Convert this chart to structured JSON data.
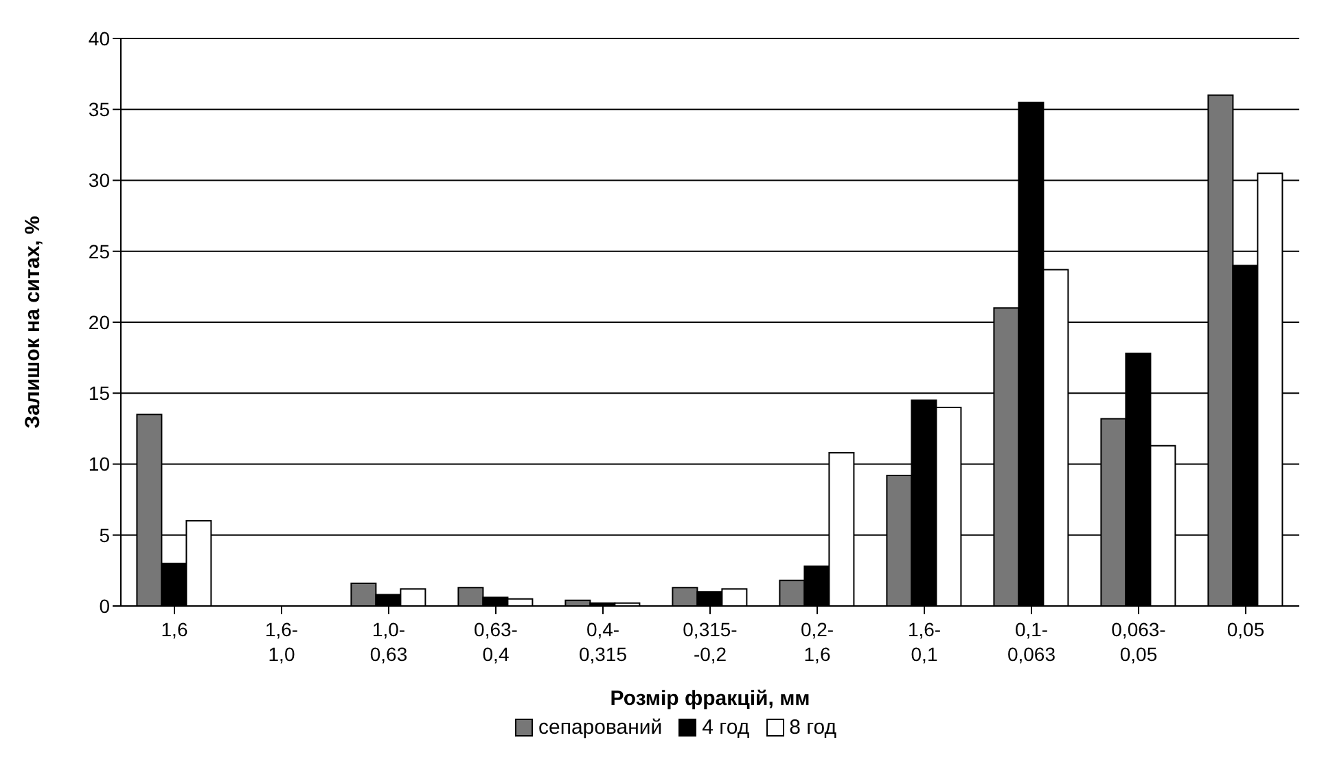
{
  "chart_data": {
    "type": "bar",
    "xlabel": "Розмір фракцій, мм",
    "ylabel": "Залишок на ситах, %",
    "categories": [
      "1,6",
      "1,6-\n1,0",
      "1,0-\n0,63",
      "0,63-\n0,4",
      "0,4-\n0,315",
      "0,315-\n-0,2",
      "0,2-\n1,6",
      "1,6-\n0,1",
      "0,1-\n0,063",
      "0,063-\n0,05",
      "0,05"
    ],
    "series": [
      {
        "name": "сепарований",
        "color": "#777777",
        "values": [
          13.5,
          null,
          1.6,
          1.3,
          0.4,
          1.3,
          1.8,
          9.2,
          21,
          13.2,
          36
        ]
      },
      {
        "name": "4 год",
        "color": "#000000",
        "values": [
          3,
          null,
          0.8,
          0.6,
          0.2,
          1,
          2.8,
          14.5,
          35.5,
          17.8,
          24
        ]
      },
      {
        "name": "8 год",
        "color": "#ffffff",
        "values": [
          6,
          null,
          1.2,
          0.5,
          0.2,
          1.2,
          10.8,
          14,
          23.7,
          11.3,
          30.5
        ]
      }
    ],
    "ylim": [
      0,
      40
    ],
    "yticks": [
      0,
      5,
      10,
      15,
      20,
      25,
      30,
      35,
      40
    ],
    "grid": "y",
    "legend": "bottom"
  }
}
